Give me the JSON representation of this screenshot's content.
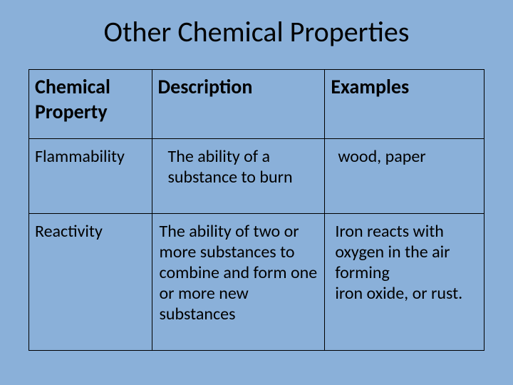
{
  "slide": {
    "background_color": "#8ab0d9",
    "title": "Other Chemical Properties",
    "title_fontsize": 40,
    "header_fontsize": 28,
    "body_fontsize": 24,
    "table": {
      "columns": [
        "Chemical Property",
        "Description",
        "Examples"
      ],
      "rows": [
        {
          "property": "Flammability",
          "description": "The ability of a substance to burn",
          "examples": "wood, paper"
        },
        {
          "property": "Reactivity",
          "description": "The ability of two or more substances to combine and form one or more new substances",
          "examples": "Iron reacts with oxygen in the air forming\n iron oxide, or rust."
        }
      ]
    }
  }
}
